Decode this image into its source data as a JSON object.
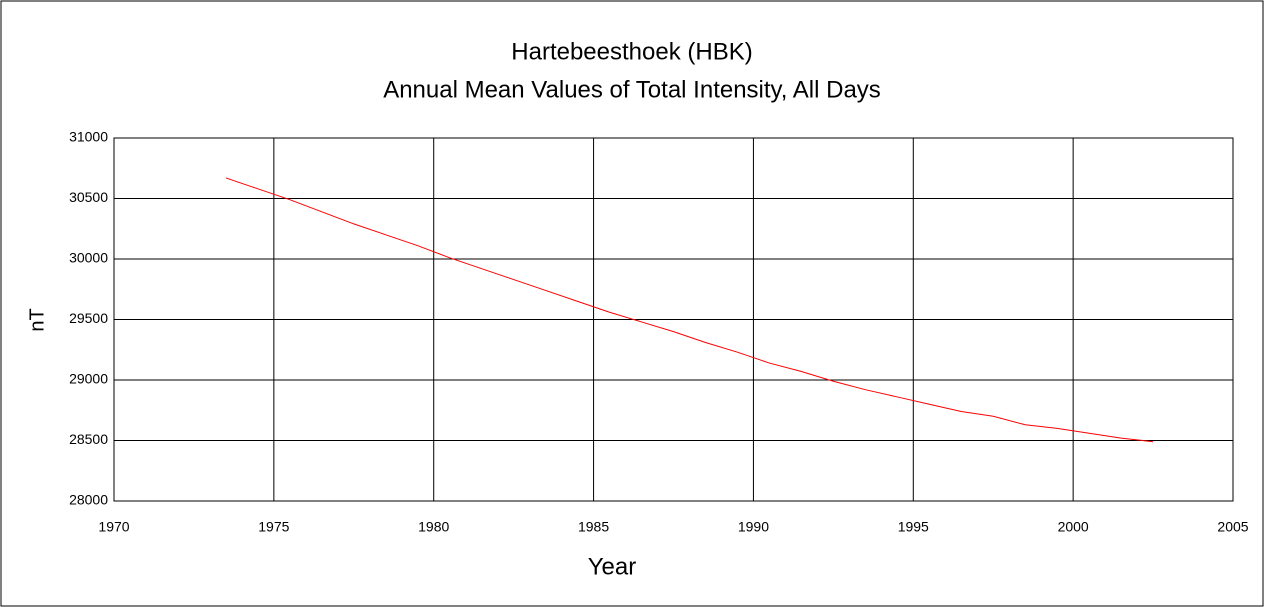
{
  "chart_data": {
    "type": "line",
    "title": "Hartebeesthoek (HBK)",
    "subtitle": "Annual Mean Values of Total Intensity, All Days",
    "x_label": "Year",
    "y_label": "nT",
    "x": [
      1973.5,
      1974.5,
      1975.5,
      1976.5,
      1977.5,
      1978.5,
      1979.5,
      1980.5,
      1981.5,
      1982.5,
      1983.5,
      1984.5,
      1985.5,
      1986.5,
      1987.5,
      1988.5,
      1989.5,
      1990.5,
      1991.5,
      1992.5,
      1993.5,
      1994.5,
      1995.5,
      1996.5,
      1997.5,
      1998.5,
      1999.5,
      2000.5,
      2001.5,
      2002.5
    ],
    "series": [
      {
        "color": "#ff0000",
        "values": [
          30670,
          30580,
          30490,
          30390,
          30290,
          30200,
          30110,
          30010,
          29920,
          29830,
          29740,
          29650,
          29560,
          29480,
          29400,
          29310,
          29230,
          29140,
          29070,
          28990,
          28920,
          28860,
          28800,
          28740,
          28700,
          28630,
          28600,
          28560,
          28520,
          28490
        ]
      }
    ],
    "xlim": [
      1970,
      2005
    ],
    "xticks": [
      1970,
      1975,
      1980,
      1985,
      1990,
      1995,
      2000,
      2005
    ],
    "ylim": [
      28000,
      31000
    ],
    "yticks": [
      28000,
      28500,
      29000,
      29500,
      30000,
      30500,
      31000
    ],
    "grid": true
  }
}
